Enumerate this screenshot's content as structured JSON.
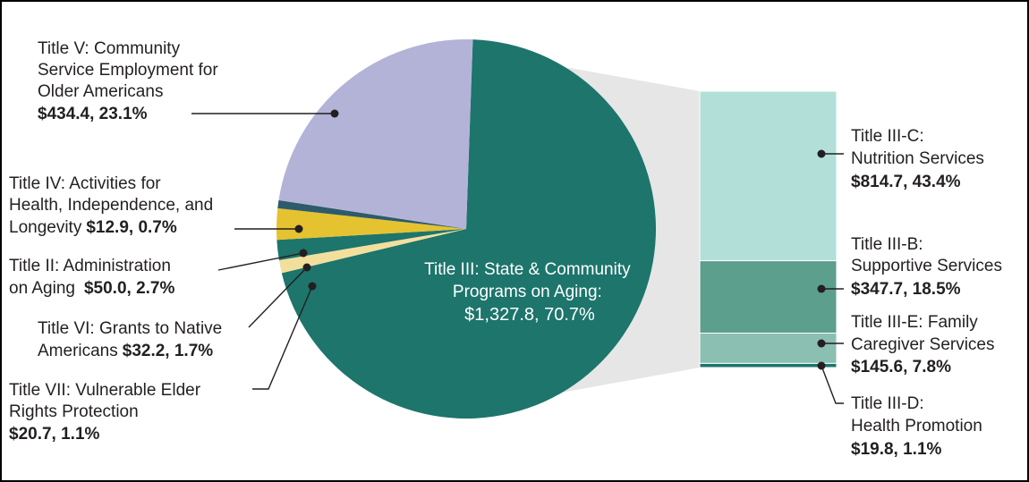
{
  "chart_data": {
    "type": "pie",
    "units": "",
    "slices": [
      {
        "label": "Title III: State & Community Programs on Aging:",
        "value": 1327.8,
        "percent": 70.7,
        "value_text": "$1,327.8, 70.7%",
        "color": "#1d756c"
      },
      {
        "label": "Title VII: Vulnerable Elder Rights Protection",
        "value": 20.7,
        "percent": 1.1,
        "value_text": "$20.7, 1.1%",
        "color": "#f3df9c"
      },
      {
        "label": "Title VI: Grants to Native Americans",
        "value": 32.2,
        "percent": 1.7,
        "value_text": "$32.2, 1.7%",
        "color": "#1d756c"
      },
      {
        "label": "Title II: Administration on Aging",
        "value": 50.0,
        "percent": 2.7,
        "value_text": "$50.0, 2.7%",
        "color": "#e5c22f"
      },
      {
        "label": "Title IV: Activities for Health, Independence, and Longevity",
        "value": 12.9,
        "percent": 0.7,
        "value_text": "$12.9, 0.7%",
        "color": "#2d5b6b"
      },
      {
        "label": "Title V: Community Service Employment for Older Americans",
        "value": 434.4,
        "percent": 23.1,
        "value_text": "$434.4, 23.1%",
        "color": "#b3b3d8"
      }
    ],
    "breakdown": {
      "of": "Title III: State & Community Programs on Aging:",
      "segments": [
        {
          "label": "Title III-C: Nutrition Services",
          "value": 814.7,
          "percent": 43.4,
          "value_text": "$814.7, 43.4%",
          "color": "#b2e0d8"
        },
        {
          "label": "Title III-B: Supportive Services",
          "value": 347.7,
          "percent": 18.5,
          "value_text": "$347.7, 18.5%",
          "color": "#5d9f8d"
        },
        {
          "label": "Title III-E: Family Caregiver Services",
          "value": 145.6,
          "percent": 7.8,
          "value_text": "$145.6, 7.8%",
          "color": "#8bbfb1"
        },
        {
          "label": "Title III-D: Health Promotion",
          "value": 19.8,
          "percent": 1.1,
          "value_text": "$19.8, 1.1%",
          "color": "#1d756c"
        }
      ]
    }
  },
  "labels": {
    "title_v": {
      "l1": "Title V: Community",
      "l2": "Service Employment for",
      "l3": "Older Americans",
      "val": "$434.4, 23.1%"
    },
    "title_iv": {
      "l1": "Title IV: Activities for",
      "l2": "Health, Independence, and",
      "l3a": "Longevity",
      "val": "$12.9, 0.7%"
    },
    "title_ii": {
      "l1": "Title II: Administration",
      "l2a": "on Aging",
      "val": "$50.0, 2.7%"
    },
    "title_vi": {
      "l1": "Title VI: Grants to Native",
      "l2a": "Americans",
      "val": "$32.2, 1.7%"
    },
    "title_vii": {
      "l1": "Title VII: Vulnerable Elder",
      "l2": "Rights Protection",
      "val": "$20.7, 1.1%"
    },
    "title_iii": {
      "l1": "Title III: State & Community",
      "l2": "Programs on Aging:",
      "val": "$1,327.8, 70.7%"
    },
    "title_iii_c": {
      "l1": "Title III-C:",
      "l2": "Nutrition Services",
      "val": "$814.7, 43.4%"
    },
    "title_iii_b": {
      "l1": "Title III-B:",
      "l2": "Supportive Services",
      "val": "$347.7, 18.5%"
    },
    "title_iii_e": {
      "l1": "Title III-E: Family",
      "l2": "Caregiver Services",
      "val": "$145.6, 7.8%"
    },
    "title_iii_d": {
      "l1": "Title III-D:",
      "l2": "Health Promotion",
      "val": "$19.8, 1.1%"
    }
  }
}
